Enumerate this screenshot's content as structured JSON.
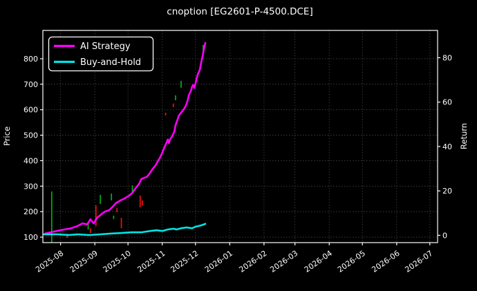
{
  "window": {
    "title": "cnoption [EG2601-P-4500.DCE]"
  },
  "chart_data": {
    "type": "line",
    "title": "cnoption [EG2601-P-4500.DCE]",
    "theme": "dark",
    "background_color": "#000000",
    "text_color": "#ffffff",
    "grid": true,
    "grid_color": "#474747",
    "axis_color": "#ffffff",
    "xlabel": "",
    "ylabel_left": "Price",
    "ylabel_right": "Return",
    "x_tick_labels": [
      "2025-08",
      "2025-09",
      "2025-10",
      "2025-11",
      "2025-12",
      "2026-01",
      "2026-02",
      "2026-03",
      "2026-04",
      "2026-05",
      "2026-06",
      "2026-07"
    ],
    "y_ticks_left": [
      100,
      200,
      300,
      400,
      500,
      600,
      700,
      800
    ],
    "y_ticks_right": [
      0,
      20,
      40,
      60,
      80
    ],
    "xlim": [
      "2025-07-16",
      "2026-07-08"
    ],
    "ylim_left": [
      78.5,
      911
    ],
    "ylim_right": [
      -3.3,
      92.3
    ],
    "legend": {
      "position": "upper-left",
      "items": [
        {
          "label": "AI Strategy",
          "color": "#ff00ff"
        },
        {
          "label": "Buy-and-Hold",
          "color": "#00e5e5"
        }
      ]
    },
    "series": [
      {
        "name": "AI Strategy",
        "color": "#ff00ff",
        "width": 2.6,
        "points": [
          [
            "2025-07-18",
            114
          ],
          [
            "2025-07-26",
            122
          ],
          [
            "2025-08-02",
            128
          ],
          [
            "2025-08-10",
            134
          ],
          [
            "2025-08-16",
            143
          ],
          [
            "2025-08-21",
            154
          ],
          [
            "2025-08-25",
            150
          ],
          [
            "2025-08-28",
            170
          ],
          [
            "2025-08-31",
            154
          ],
          [
            "2025-09-03",
            176
          ],
          [
            "2025-09-07",
            190
          ],
          [
            "2025-09-10",
            200
          ],
          [
            "2025-09-14",
            206
          ],
          [
            "2025-09-17",
            219
          ],
          [
            "2025-09-20",
            233
          ],
          [
            "2025-09-24",
            244
          ],
          [
            "2025-09-28",
            252
          ],
          [
            "2025-10-02",
            263
          ],
          [
            "2025-10-05",
            274
          ],
          [
            "2025-10-08",
            293
          ],
          [
            "2025-10-11",
            309
          ],
          [
            "2025-10-13",
            328
          ],
          [
            "2025-10-16",
            333
          ],
          [
            "2025-10-18",
            336
          ],
          [
            "2025-10-21",
            352
          ],
          [
            "2025-10-23",
            366
          ],
          [
            "2025-10-26",
            382
          ],
          [
            "2025-10-28",
            398
          ],
          [
            "2025-10-30",
            412
          ],
          [
            "2025-11-01",
            431
          ],
          [
            "2025-11-03",
            453
          ],
          [
            "2025-11-05",
            472
          ],
          [
            "2025-11-06",
            483
          ],
          [
            "2025-11-07",
            469
          ],
          [
            "2025-11-08",
            483
          ],
          [
            "2025-11-10",
            496
          ],
          [
            "2025-11-12",
            515
          ],
          [
            "2025-11-13",
            539
          ],
          [
            "2025-11-15",
            564
          ],
          [
            "2025-11-16",
            577
          ],
          [
            "2025-11-18",
            588
          ],
          [
            "2025-11-20",
            599
          ],
          [
            "2025-11-22",
            613
          ],
          [
            "2025-11-23",
            624
          ],
          [
            "2025-11-24",
            637
          ],
          [
            "2025-11-25",
            656
          ],
          [
            "2025-11-27",
            675
          ],
          [
            "2025-11-28",
            691
          ],
          [
            "2025-11-29",
            697
          ],
          [
            "2025-11-30",
            686
          ],
          [
            "2025-12-01",
            702
          ],
          [
            "2025-12-02",
            721
          ],
          [
            "2025-12-03",
            737
          ],
          [
            "2025-12-05",
            757
          ],
          [
            "2025-12-06",
            781
          ],
          [
            "2025-12-07",
            800
          ],
          [
            "2025-12-08",
            822
          ],
          [
            "2025-12-09",
            846
          ],
          [
            "2025-12-10",
            862
          ]
        ]
      },
      {
        "name": "Buy-and-Hold",
        "color": "#00e5e5",
        "width": 2.6,
        "points": [
          [
            "2025-07-17",
            111
          ],
          [
            "2025-07-30",
            111
          ],
          [
            "2025-08-08",
            108
          ],
          [
            "2025-08-17",
            111
          ],
          [
            "2025-08-27",
            108
          ],
          [
            "2025-09-06",
            111
          ],
          [
            "2025-09-15",
            114
          ],
          [
            "2025-09-24",
            116
          ],
          [
            "2025-10-04",
            119
          ],
          [
            "2025-10-13",
            119
          ],
          [
            "2025-10-21",
            124
          ],
          [
            "2025-10-27",
            127
          ],
          [
            "2025-11-01",
            124
          ],
          [
            "2025-11-06",
            130
          ],
          [
            "2025-11-11",
            133
          ],
          [
            "2025-11-14",
            130
          ],
          [
            "2025-11-18",
            135
          ],
          [
            "2025-11-23",
            138
          ],
          [
            "2025-11-28",
            135
          ],
          [
            "2025-12-01",
            141
          ],
          [
            "2025-12-06",
            146
          ],
          [
            "2025-12-10",
            152
          ]
        ]
      }
    ],
    "event_bars": {
      "description": "short red/green vertical tick marks scattered around the strategy line",
      "colors": {
        "green": "#00a818",
        "red": "#e01212"
      },
      "bars": [
        {
          "date": "2025-07-24",
          "low": 76,
          "high": 279,
          "color": "green"
        },
        {
          "date": "2025-08-07",
          "low": 97,
          "high": 114,
          "color": "red"
        },
        {
          "date": "2025-08-26",
          "low": 130,
          "high": 157,
          "color": "green"
        },
        {
          "date": "2025-08-28",
          "low": 116,
          "high": 135,
          "color": "red"
        },
        {
          "date": "2025-09-02",
          "low": 143,
          "high": 225,
          "color": "red"
        },
        {
          "date": "2025-09-06",
          "low": 230,
          "high": 266,
          "color": "green"
        },
        {
          "date": "2025-09-16",
          "low": 244,
          "high": 271,
          "color": "green"
        },
        {
          "date": "2025-09-18",
          "low": 171,
          "high": 184,
          "color": "green"
        },
        {
          "date": "2025-09-21",
          "low": 198,
          "high": 214,
          "color": "red"
        },
        {
          "date": "2025-09-25",
          "low": 135,
          "high": 176,
          "color": "red"
        },
        {
          "date": "2025-10-05",
          "low": 276,
          "high": 303,
          "color": "green"
        },
        {
          "date": "2025-10-12",
          "low": 217,
          "high": 263,
          "color": "red"
        },
        {
          "date": "2025-10-14",
          "low": 225,
          "high": 244,
          "color": "red"
        },
        {
          "date": "2025-11-04",
          "low": 577,
          "high": 588,
          "color": "red"
        },
        {
          "date": "2025-11-11",
          "low": 610,
          "high": 624,
          "color": "red"
        },
        {
          "date": "2025-11-13",
          "low": 637,
          "high": 656,
          "color": "green"
        },
        {
          "date": "2025-11-18",
          "low": 686,
          "high": 713,
          "color": "green"
        },
        {
          "date": "2025-12-08",
          "low": 830,
          "high": 854,
          "color": "green"
        }
      ]
    }
  }
}
